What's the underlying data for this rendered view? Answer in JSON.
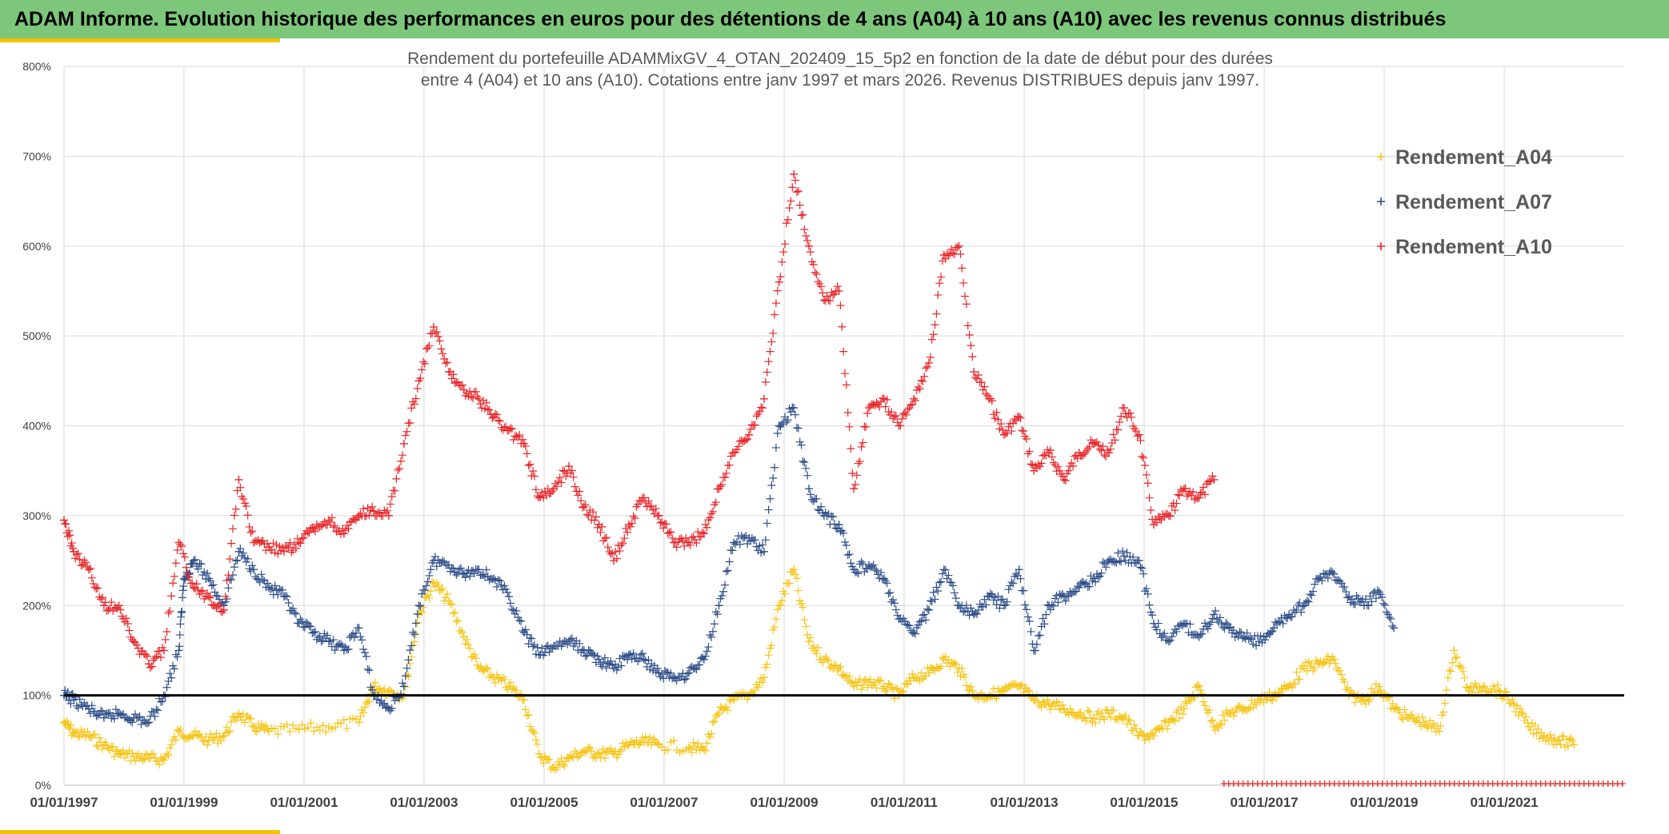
{
  "header": {
    "title": "ADAM Informe. Evolution historique des performances en euros pour des détentions de 4 ans (A04) à 10 ans (A10) avec les revenus connus distribués"
  },
  "colors": {
    "header_bg": "#7dc77a",
    "accent_yellow": "#f3c300",
    "A04": "#f5c518",
    "A07": "#2f4f8a",
    "A10": "#e8262a",
    "ref_line": "#000000"
  },
  "chart_data": {
    "type": "scatter",
    "title_lines": [
      "Rendement du portefeuille ADAMMixGV_4_OTAN_202409_15_5p2  en fonction de la date de début pour des durées",
      "entre 4 (A04) et 10 ans (A10). Cotations entre janv 1997 et mars 2026. Revenus DISTRIBUES depuis janv 1997."
    ],
    "x_ticks": [
      "01/01/1997",
      "01/01/1999",
      "01/01/2001",
      "01/01/2003",
      "01/01/2005",
      "01/01/2007",
      "01/01/2009",
      "01/01/2011",
      "01/01/2013",
      "01/01/2015",
      "01/01/2017",
      "01/01/2019",
      "01/01/2021"
    ],
    "y_ticks": [
      "0%",
      "100%",
      "200%",
      "300%",
      "400%",
      "500%",
      "600%",
      "700%",
      "800%"
    ],
    "xlim": [
      "1997-01-01",
      "2023-01-01"
    ],
    "ylim": [
      0,
      800
    ],
    "y_unit": "%",
    "grid": true,
    "legend_position": "top-right",
    "reference_line": 100,
    "marker": "+",
    "series": [
      {
        "name": "Rendement_A04",
        "points": [
          [
            "1997-01-01",
            70
          ],
          [
            "1997-03-01",
            58
          ],
          [
            "1997-06-01",
            55
          ],
          [
            "1997-09-01",
            45
          ],
          [
            "1997-12-01",
            35
          ],
          [
            "1998-03-01",
            32
          ],
          [
            "1998-06-01",
            30
          ],
          [
            "1998-09-01",
            28
          ],
          [
            "1998-12-01",
            60
          ],
          [
            "1999-03-01",
            55
          ],
          [
            "1999-06-01",
            50
          ],
          [
            "1999-09-01",
            55
          ],
          [
            "1999-12-01",
            80
          ],
          [
            "2000-03-01",
            65
          ],
          [
            "2000-06-01",
            60
          ],
          [
            "2000-12-01",
            62
          ],
          [
            "2001-06-01",
            65
          ],
          [
            "2001-12-01",
            70
          ],
          [
            "2002-03-01",
            110
          ],
          [
            "2002-06-01",
            105
          ],
          [
            "2002-09-01",
            100
          ],
          [
            "2002-12-01",
            190
          ],
          [
            "2003-03-01",
            225
          ],
          [
            "2003-06-01",
            205
          ],
          [
            "2003-09-01",
            165
          ],
          [
            "2003-12-01",
            130
          ],
          [
            "2004-03-01",
            120
          ],
          [
            "2004-06-01",
            110
          ],
          [
            "2004-09-01",
            95
          ],
          [
            "2004-12-01",
            35
          ],
          [
            "2005-03-01",
            20
          ],
          [
            "2005-06-01",
            30
          ],
          [
            "2005-09-01",
            38
          ],
          [
            "2005-12-01",
            35
          ],
          [
            "2006-03-01",
            35
          ],
          [
            "2006-06-01",
            45
          ],
          [
            "2006-09-01",
            48
          ],
          [
            "2006-12-01",
            45
          ],
          [
            "2007-06-01",
            42
          ],
          [
            "2007-09-01",
            40
          ],
          [
            "2007-12-01",
            80
          ],
          [
            "2008-03-01",
            95
          ],
          [
            "2008-06-01",
            100
          ],
          [
            "2008-09-01",
            120
          ],
          [
            "2008-12-01",
            200
          ],
          [
            "2009-03-01",
            240
          ],
          [
            "2009-06-01",
            160
          ],
          [
            "2009-09-01",
            140
          ],
          [
            "2009-12-01",
            130
          ],
          [
            "2010-03-01",
            110
          ],
          [
            "2010-06-01",
            115
          ],
          [
            "2010-09-01",
            110
          ],
          [
            "2010-12-01",
            100
          ],
          [
            "2011-03-01",
            120
          ],
          [
            "2011-06-01",
            125
          ],
          [
            "2011-09-01",
            140
          ],
          [
            "2011-12-01",
            130
          ],
          [
            "2012-03-01",
            100
          ],
          [
            "2012-06-01",
            100
          ],
          [
            "2012-09-01",
            105
          ],
          [
            "2012-12-01",
            110
          ],
          [
            "2013-03-01",
            95
          ],
          [
            "2013-06-01",
            90
          ],
          [
            "2013-09-01",
            85
          ],
          [
            "2013-12-01",
            80
          ],
          [
            "2014-03-01",
            75
          ],
          [
            "2014-06-01",
            80
          ],
          [
            "2014-09-01",
            75
          ],
          [
            "2014-12-01",
            55
          ],
          [
            "2015-03-01",
            55
          ],
          [
            "2015-06-01",
            70
          ],
          [
            "2015-09-01",
            85
          ],
          [
            "2015-12-01",
            110
          ],
          [
            "2016-03-01",
            65
          ],
          [
            "2016-06-01",
            80
          ],
          [
            "2016-09-01",
            85
          ],
          [
            "2016-12-01",
            95
          ],
          [
            "2017-03-01",
            100
          ],
          [
            "2017-06-01",
            110
          ],
          [
            "2017-09-01",
            130
          ],
          [
            "2017-12-01",
            135
          ],
          [
            "2018-03-01",
            140
          ],
          [
            "2018-06-01",
            100
          ],
          [
            "2018-09-01",
            95
          ],
          [
            "2018-12-01",
            110
          ],
          [
            "2019-03-01",
            85
          ],
          [
            "2019-06-01",
            75
          ],
          [
            "2019-09-01",
            70
          ],
          [
            "2019-12-01",
            60
          ],
          [
            "2020-03-01",
            150
          ],
          [
            "2020-06-01",
            105
          ],
          [
            "2020-09-01",
            110
          ],
          [
            "2020-12-01",
            105
          ],
          [
            "2021-03-01",
            90
          ],
          [
            "2021-06-01",
            65
          ],
          [
            "2021-09-01",
            55
          ],
          [
            "2021-12-01",
            50
          ],
          [
            "2022-03-01",
            45
          ]
        ]
      },
      {
        "name": "Rendement_A07",
        "points": [
          [
            "1997-01-01",
            100
          ],
          [
            "1997-03-01",
            95
          ],
          [
            "1997-06-01",
            85
          ],
          [
            "1997-09-01",
            75
          ],
          [
            "1997-12-01",
            80
          ],
          [
            "1998-03-01",
            75
          ],
          [
            "1998-06-01",
            70
          ],
          [
            "1998-09-01",
            100
          ],
          [
            "1998-12-01",
            150
          ],
          [
            "1999-01-01",
            230
          ],
          [
            "1999-03-01",
            250
          ],
          [
            "1999-06-01",
            230
          ],
          [
            "1999-09-01",
            200
          ],
          [
            "1999-12-01",
            260
          ],
          [
            "2000-03-01",
            240
          ],
          [
            "2000-06-01",
            220
          ],
          [
            "2000-09-01",
            210
          ],
          [
            "2000-12-01",
            180
          ],
          [
            "2001-03-01",
            170
          ],
          [
            "2001-06-01",
            160
          ],
          [
            "2001-09-01",
            150
          ],
          [
            "2001-12-01",
            175
          ],
          [
            "2002-03-01",
            100
          ],
          [
            "2002-06-01",
            85
          ],
          [
            "2002-09-01",
            110
          ],
          [
            "2002-12-01",
            200
          ],
          [
            "2003-03-01",
            250
          ],
          [
            "2003-06-01",
            245
          ],
          [
            "2003-09-01",
            235
          ],
          [
            "2003-12-01",
            240
          ],
          [
            "2004-03-01",
            230
          ],
          [
            "2004-06-01",
            210
          ],
          [
            "2004-09-01",
            170
          ],
          [
            "2004-12-01",
            145
          ],
          [
            "2005-03-01",
            155
          ],
          [
            "2005-06-01",
            160
          ],
          [
            "2005-09-01",
            150
          ],
          [
            "2005-12-01",
            140
          ],
          [
            "2006-03-01",
            130
          ],
          [
            "2006-06-01",
            145
          ],
          [
            "2006-09-01",
            140
          ],
          [
            "2006-12-01",
            125
          ],
          [
            "2007-03-01",
            120
          ],
          [
            "2007-06-01",
            125
          ],
          [
            "2007-09-01",
            140
          ],
          [
            "2007-12-01",
            200
          ],
          [
            "2008-03-01",
            270
          ],
          [
            "2008-06-01",
            275
          ],
          [
            "2008-09-01",
            260
          ],
          [
            "2008-12-01",
            400
          ],
          [
            "2009-03-01",
            420
          ],
          [
            "2009-06-01",
            330
          ],
          [
            "2009-09-01",
            300
          ],
          [
            "2009-12-01",
            290
          ],
          [
            "2010-03-01",
            240
          ],
          [
            "2010-06-01",
            245
          ],
          [
            "2010-09-01",
            230
          ],
          [
            "2010-12-01",
            185
          ],
          [
            "2011-03-01",
            170
          ],
          [
            "2011-06-01",
            195
          ],
          [
            "2011-09-01",
            240
          ],
          [
            "2011-12-01",
            200
          ],
          [
            "2012-03-01",
            190
          ],
          [
            "2012-06-01",
            210
          ],
          [
            "2012-09-01",
            200
          ],
          [
            "2012-12-01",
            240
          ],
          [
            "2013-03-01",
            150
          ],
          [
            "2013-06-01",
            200
          ],
          [
            "2013-09-01",
            210
          ],
          [
            "2013-12-01",
            220
          ],
          [
            "2014-03-01",
            230
          ],
          [
            "2014-06-01",
            250
          ],
          [
            "2014-09-01",
            255
          ],
          [
            "2014-12-01",
            250
          ],
          [
            "2015-03-01",
            180
          ],
          [
            "2015-06-01",
            160
          ],
          [
            "2015-09-01",
            180
          ],
          [
            "2015-12-01",
            165
          ],
          [
            "2016-03-01",
            190
          ],
          [
            "2016-06-01",
            175
          ],
          [
            "2016-09-01",
            165
          ],
          [
            "2016-12-01",
            160
          ],
          [
            "2017-03-01",
            175
          ],
          [
            "2017-06-01",
            190
          ],
          [
            "2017-09-01",
            200
          ],
          [
            "2017-12-01",
            230
          ],
          [
            "2018-03-01",
            235
          ],
          [
            "2018-06-01",
            210
          ],
          [
            "2018-09-01",
            200
          ],
          [
            "2018-12-01",
            215
          ],
          [
            "2019-03-01",
            175
          ]
        ]
      },
      {
        "name": "Rendement_A10",
        "points": [
          [
            "1997-01-01",
            295
          ],
          [
            "1997-03-01",
            260
          ],
          [
            "1997-06-01",
            240
          ],
          [
            "1997-09-01",
            200
          ],
          [
            "1997-12-01",
            200
          ],
          [
            "1998-03-01",
            160
          ],
          [
            "1998-06-01",
            135
          ],
          [
            "1998-09-01",
            150
          ],
          [
            "1998-12-01",
            270
          ],
          [
            "1999-03-01",
            220
          ],
          [
            "1999-06-01",
            210
          ],
          [
            "1999-09-01",
            195
          ],
          [
            "1999-12-01",
            340
          ],
          [
            "2000-03-01",
            270
          ],
          [
            "2000-06-01",
            265
          ],
          [
            "2000-09-01",
            260
          ],
          [
            "2000-12-01",
            270
          ],
          [
            "2001-03-01",
            285
          ],
          [
            "2001-06-01",
            295
          ],
          [
            "2001-09-01",
            280
          ],
          [
            "2001-12-01",
            300
          ],
          [
            "2002-03-01",
            305
          ],
          [
            "2002-06-01",
            300
          ],
          [
            "2002-09-01",
            380
          ],
          [
            "2002-12-01",
            450
          ],
          [
            "2003-03-01",
            510
          ],
          [
            "2003-06-01",
            460
          ],
          [
            "2003-09-01",
            440
          ],
          [
            "2003-12-01",
            430
          ],
          [
            "2004-03-01",
            410
          ],
          [
            "2004-06-01",
            395
          ],
          [
            "2004-09-01",
            380
          ],
          [
            "2004-12-01",
            320
          ],
          [
            "2005-03-01",
            330
          ],
          [
            "2005-06-01",
            355
          ],
          [
            "2005-09-01",
            310
          ],
          [
            "2005-12-01",
            290
          ],
          [
            "2006-03-01",
            250
          ],
          [
            "2006-06-01",
            290
          ],
          [
            "2006-09-01",
            320
          ],
          [
            "2006-12-01",
            300
          ],
          [
            "2007-03-01",
            270
          ],
          [
            "2007-06-01",
            270
          ],
          [
            "2007-09-01",
            280
          ],
          [
            "2007-12-01",
            330
          ],
          [
            "2008-03-01",
            370
          ],
          [
            "2008-06-01",
            390
          ],
          [
            "2008-09-01",
            430
          ],
          [
            "2008-12-01",
            560
          ],
          [
            "2009-03-01",
            680
          ],
          [
            "2009-06-01",
            600
          ],
          [
            "2009-09-01",
            540
          ],
          [
            "2009-12-01",
            550
          ],
          [
            "2010-03-01",
            330
          ],
          [
            "2010-06-01",
            420
          ],
          [
            "2010-09-01",
            430
          ],
          [
            "2010-12-01",
            400
          ],
          [
            "2011-03-01",
            430
          ],
          [
            "2011-06-01",
            470
          ],
          [
            "2011-09-01",
            590
          ],
          [
            "2011-12-01",
            600
          ],
          [
            "2012-03-01",
            460
          ],
          [
            "2012-06-01",
            430
          ],
          [
            "2012-09-01",
            390
          ],
          [
            "2012-12-01",
            410
          ],
          [
            "2013-03-01",
            350
          ],
          [
            "2013-06-01",
            370
          ],
          [
            "2013-09-01",
            340
          ],
          [
            "2013-12-01",
            370
          ],
          [
            "2014-03-01",
            380
          ],
          [
            "2014-06-01",
            370
          ],
          [
            "2014-09-01",
            420
          ],
          [
            "2014-12-01",
            390
          ],
          [
            "2015-03-01",
            290
          ],
          [
            "2015-06-01",
            300
          ],
          [
            "2015-09-01",
            330
          ],
          [
            "2015-12-01",
            320
          ],
          [
            "2016-03-01",
            340
          ]
        ]
      }
    ]
  }
}
